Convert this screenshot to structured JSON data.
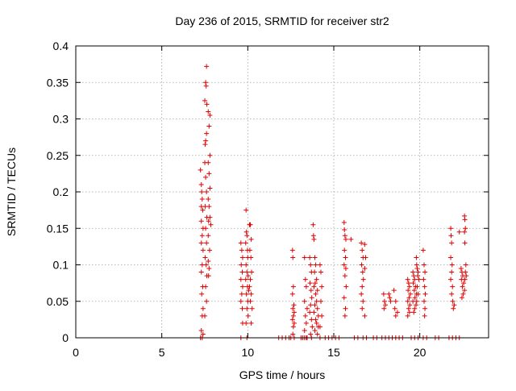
{
  "chart_data": {
    "type": "scatter",
    "title": "Day 236 of 2015, SRMTID for receiver str2",
    "xlabel": "GPS time / hours",
    "ylabel": "SRMTID / TECUs",
    "xlim": [
      0,
      24
    ],
    "ylim": [
      0,
      0.4
    ],
    "xticks": [
      "0",
      "5",
      "10",
      "15",
      "20"
    ],
    "yticks": [
      "0",
      "0.05",
      "0.1",
      "0.15",
      "0.2",
      "0.25",
      "0.3",
      "0.35",
      "0.4"
    ],
    "grid": true,
    "marker": "+",
    "marker_color": "#e00000",
    "series": [
      {
        "name": "SRMTID",
        "points": [
          [
            7.25,
            0.23
          ],
          [
            7.3,
            0.21
          ],
          [
            7.32,
            0.2
          ],
          [
            7.35,
            0.19
          ],
          [
            7.3,
            0.18
          ],
          [
            7.38,
            0.175
          ],
          [
            7.3,
            0.16
          ],
          [
            7.4,
            0.15
          ],
          [
            7.35,
            0.14
          ],
          [
            7.3,
            0.13
          ],
          [
            7.4,
            0.12
          ],
          [
            7.35,
            0.1
          ],
          [
            7.3,
            0.09
          ],
          [
            7.38,
            0.07
          ],
          [
            7.32,
            0.06
          ],
          [
            7.4,
            0.04
          ],
          [
            7.35,
            0.03
          ],
          [
            7.3,
            0.01
          ],
          [
            7.4,
            0.005
          ],
          [
            7.25,
            0.0
          ],
          [
            7.35,
            0.0
          ],
          [
            7.5,
            0.24
          ],
          [
            7.55,
            0.22
          ],
          [
            7.6,
            0.2
          ],
          [
            7.52,
            0.18
          ],
          [
            7.62,
            0.165
          ],
          [
            7.55,
            0.15
          ],
          [
            7.6,
            0.13
          ],
          [
            7.52,
            0.11
          ],
          [
            7.58,
            0.1
          ],
          [
            7.62,
            0.085
          ],
          [
            7.55,
            0.07
          ],
          [
            7.6,
            0.05
          ],
          [
            7.5,
            0.03
          ],
          [
            7.6,
            0.372
          ],
          [
            7.55,
            0.35
          ],
          [
            7.58,
            0.345
          ],
          [
            7.5,
            0.325
          ],
          [
            7.62,
            0.32
          ],
          [
            7.7,
            0.31
          ],
          [
            7.8,
            0.305
          ],
          [
            7.75,
            0.29
          ],
          [
            7.6,
            0.28
          ],
          [
            7.55,
            0.27
          ],
          [
            7.52,
            0.265
          ],
          [
            7.8,
            0.25
          ],
          [
            7.7,
            0.24
          ],
          [
            7.75,
            0.225
          ],
          [
            7.8,
            0.205
          ],
          [
            7.7,
            0.19
          ],
          [
            7.75,
            0.18
          ],
          [
            7.8,
            0.165
          ],
          [
            7.72,
            0.16
          ],
          [
            7.85,
            0.155
          ],
          [
            7.7,
            0.14
          ],
          [
            7.78,
            0.12
          ],
          [
            7.7,
            0.105
          ],
          [
            7.75,
            0.095
          ],
          [
            7.72,
            0.085
          ],
          [
            9.6,
            0.13
          ],
          [
            9.65,
            0.12
          ],
          [
            9.7,
            0.11
          ],
          [
            9.62,
            0.1
          ],
          [
            9.68,
            0.09
          ],
          [
            9.6,
            0.08
          ],
          [
            9.7,
            0.07
          ],
          [
            9.65,
            0.06
          ],
          [
            9.6,
            0.05
          ],
          [
            9.68,
            0.04
          ],
          [
            9.7,
            0.02
          ],
          [
            9.6,
            0.0
          ],
          [
            9.9,
            0.175
          ],
          [
            9.92,
            0.145
          ],
          [
            9.95,
            0.14
          ],
          [
            9.88,
            0.13
          ],
          [
            9.98,
            0.12
          ],
          [
            10.0,
            0.11
          ],
          [
            9.9,
            0.1
          ],
          [
            9.95,
            0.09
          ],
          [
            10.02,
            0.085
          ],
          [
            9.88,
            0.08
          ],
          [
            9.98,
            0.07
          ],
          [
            10.05,
            0.065
          ],
          [
            9.92,
            0.06
          ],
          [
            10.0,
            0.05
          ],
          [
            9.95,
            0.04
          ],
          [
            10.02,
            0.03
          ],
          [
            9.9,
            0.02
          ],
          [
            9.95,
            0.0
          ],
          [
            10.1,
            0.155
          ],
          [
            10.15,
            0.155
          ],
          [
            10.2,
            0.135
          ],
          [
            10.12,
            0.12
          ],
          [
            10.18,
            0.11
          ],
          [
            10.22,
            0.09
          ],
          [
            10.15,
            0.08
          ],
          [
            10.1,
            0.07
          ],
          [
            10.2,
            0.06
          ],
          [
            10.15,
            0.05
          ],
          [
            10.25,
            0.04
          ],
          [
            10.2,
            0.02
          ],
          [
            11.8,
            0.0
          ],
          [
            12.0,
            0.0
          ],
          [
            12.2,
            0.0
          ],
          [
            12.4,
            0.0
          ],
          [
            12.5,
            0.0
          ],
          [
            12.6,
            0.12
          ],
          [
            12.62,
            0.11
          ],
          [
            12.65,
            0.07
          ],
          [
            12.6,
            0.06
          ],
          [
            12.68,
            0.045
          ],
          [
            12.62,
            0.04
          ],
          [
            12.7,
            0.035
          ],
          [
            12.65,
            0.03
          ],
          [
            12.6,
            0.025
          ],
          [
            12.7,
            0.02
          ],
          [
            12.65,
            0.015
          ],
          [
            12.62,
            0.005
          ],
          [
            12.7,
            0.0
          ],
          [
            13.1,
            0.0
          ],
          [
            13.2,
            0.0
          ],
          [
            13.3,
            0.0
          ],
          [
            13.4,
            0.0
          ],
          [
            13.3,
            0.11
          ],
          [
            13.35,
            0.08
          ],
          [
            13.4,
            0.07
          ],
          [
            13.3,
            0.05
          ],
          [
            13.45,
            0.04
          ],
          [
            13.35,
            0.03
          ],
          [
            13.4,
            0.02
          ],
          [
            13.3,
            0.01
          ],
          [
            13.45,
            0.0
          ],
          [
            13.6,
            0.11
          ],
          [
            13.65,
            0.1
          ],
          [
            13.7,
            0.09
          ],
          [
            13.62,
            0.075
          ],
          [
            13.68,
            0.065
          ],
          [
            13.72,
            0.055
          ],
          [
            13.65,
            0.045
          ],
          [
            13.6,
            0.035
          ],
          [
            13.7,
            0.025
          ],
          [
            13.75,
            0.015
          ],
          [
            13.65,
            0.005
          ],
          [
            13.7,
            0.0
          ],
          [
            13.8,
            0.155
          ],
          [
            13.82,
            0.14
          ],
          [
            13.85,
            0.135
          ],
          [
            13.9,
            0.11
          ],
          [
            13.95,
            0.1
          ],
          [
            13.88,
            0.09
          ],
          [
            14.0,
            0.08
          ],
          [
            13.92,
            0.075
          ],
          [
            13.85,
            0.07
          ],
          [
            14.05,
            0.065
          ],
          [
            13.95,
            0.06
          ],
          [
            14.0,
            0.05
          ],
          [
            13.9,
            0.045
          ],
          [
            14.05,
            0.04
          ],
          [
            13.85,
            0.035
          ],
          [
            14.1,
            0.03
          ],
          [
            13.95,
            0.025
          ],
          [
            14.0,
            0.02
          ],
          [
            14.1,
            0.015
          ],
          [
            13.9,
            0.01
          ],
          [
            14.05,
            0.005
          ],
          [
            14.2,
            0.0
          ],
          [
            14.2,
            0.1
          ],
          [
            14.25,
            0.09
          ],
          [
            14.3,
            0.07
          ],
          [
            14.25,
            0.05
          ],
          [
            14.3,
            0.03
          ],
          [
            14.2,
            0.015
          ],
          [
            14.5,
            0.0
          ],
          [
            14.7,
            0.0
          ],
          [
            14.9,
            0.0
          ],
          [
            15.1,
            0.0
          ],
          [
            15.3,
            0.0
          ],
          [
            15.6,
            0.158
          ],
          [
            15.62,
            0.148
          ],
          [
            15.65,
            0.14
          ],
          [
            15.7,
            0.135
          ],
          [
            15.62,
            0.12
          ],
          [
            15.68,
            0.11
          ],
          [
            15.6,
            0.1
          ],
          [
            15.7,
            0.095
          ],
          [
            15.65,
            0.085
          ],
          [
            15.72,
            0.07
          ],
          [
            15.6,
            0.055
          ],
          [
            15.68,
            0.04
          ],
          [
            15.65,
            0.03
          ],
          [
            16.0,
            0.135
          ],
          [
            16.2,
            0.0
          ],
          [
            16.4,
            0.0
          ],
          [
            16.6,
            0.13
          ],
          [
            16.65,
            0.12
          ],
          [
            16.7,
            0.11
          ],
          [
            16.62,
            0.1
          ],
          [
            16.68,
            0.09
          ],
          [
            16.72,
            0.08
          ],
          [
            16.65,
            0.07
          ],
          [
            16.6,
            0.06
          ],
          [
            16.7,
            0.05
          ],
          [
            16.65,
            0.04
          ],
          [
            16.8,
            0.03
          ],
          [
            16.7,
            0.0
          ],
          [
            16.9,
            0.0
          ],
          [
            16.8,
            0.128
          ],
          [
            16.85,
            0.11
          ],
          [
            16.8,
            0.095
          ],
          [
            17.3,
            0.0
          ],
          [
            17.5,
            0.0
          ],
          [
            17.9,
            0.06
          ],
          [
            17.95,
            0.05
          ],
          [
            18.0,
            0.045
          ],
          [
            17.92,
            0.04
          ],
          [
            18.2,
            0.06
          ],
          [
            18.25,
            0.055
          ],
          [
            18.3,
            0.05
          ],
          [
            18.5,
            0.065
          ],
          [
            18.6,
            0.05
          ],
          [
            18.55,
            0.04
          ],
          [
            18.7,
            0.035
          ],
          [
            18.6,
            0.03
          ],
          [
            17.8,
            0.0
          ],
          [
            18.0,
            0.0
          ],
          [
            18.2,
            0.0
          ],
          [
            18.4,
            0.0
          ],
          [
            18.6,
            0.0
          ],
          [
            18.8,
            0.0
          ],
          [
            19.0,
            0.0
          ],
          [
            19.3,
            0.08
          ],
          [
            19.35,
            0.075
          ],
          [
            19.4,
            0.07
          ],
          [
            19.32,
            0.065
          ],
          [
            19.45,
            0.06
          ],
          [
            19.38,
            0.055
          ],
          [
            19.3,
            0.05
          ],
          [
            19.42,
            0.045
          ],
          [
            19.35,
            0.04
          ],
          [
            19.4,
            0.035
          ],
          [
            19.3,
            0.03
          ],
          [
            19.6,
            0.09
          ],
          [
            19.65,
            0.085
          ],
          [
            19.7,
            0.08
          ],
          [
            19.62,
            0.075
          ],
          [
            19.75,
            0.07
          ],
          [
            19.68,
            0.065
          ],
          [
            19.8,
            0.06
          ],
          [
            19.72,
            0.055
          ],
          [
            19.6,
            0.05
          ],
          [
            19.78,
            0.045
          ],
          [
            19.7,
            0.04
          ],
          [
            19.65,
            0.035
          ],
          [
            19.8,
            0.11
          ],
          [
            19.82,
            0.1
          ],
          [
            19.85,
            0.095
          ],
          [
            19.9,
            0.09
          ],
          [
            19.88,
            0.085
          ],
          [
            19.95,
            0.08
          ],
          [
            19.85,
            0.07
          ],
          [
            19.9,
            0.06
          ],
          [
            19.82,
            0.05
          ],
          [
            19.5,
            0.0
          ],
          [
            19.7,
            0.0
          ],
          [
            19.9,
            0.0
          ],
          [
            20.2,
            0.12
          ],
          [
            20.25,
            0.1
          ],
          [
            20.3,
            0.09
          ],
          [
            20.22,
            0.08
          ],
          [
            20.28,
            0.07
          ],
          [
            20.32,
            0.06
          ],
          [
            20.25,
            0.05
          ],
          [
            20.3,
            0.04
          ],
          [
            20.28,
            0.03
          ],
          [
            20.2,
            0.0
          ],
          [
            20.4,
            0.0
          ],
          [
            20.9,
            0.0
          ],
          [
            21.1,
            0.0
          ],
          [
            21.8,
            0.15
          ],
          [
            21.82,
            0.14
          ],
          [
            21.85,
            0.13
          ],
          [
            21.8,
            0.11
          ],
          [
            21.88,
            0.1
          ],
          [
            21.85,
            0.09
          ],
          [
            21.8,
            0.08
          ],
          [
            21.9,
            0.07
          ],
          [
            21.85,
            0.06
          ],
          [
            21.92,
            0.05
          ],
          [
            22.0,
            0.045
          ],
          [
            21.95,
            0.04
          ],
          [
            21.7,
            0.0
          ],
          [
            21.9,
            0.0
          ],
          [
            22.1,
            0.0
          ],
          [
            22.3,
            0.0
          ],
          [
            22.3,
            0.145
          ],
          [
            22.4,
            0.095
          ],
          [
            22.45,
            0.09
          ],
          [
            22.5,
            0.085
          ],
          [
            22.42,
            0.08
          ],
          [
            22.55,
            0.075
          ],
          [
            22.48,
            0.07
          ],
          [
            22.6,
            0.065
          ],
          [
            22.52,
            0.06
          ],
          [
            22.45,
            0.055
          ],
          [
            22.6,
            0.167
          ],
          [
            22.62,
            0.162
          ],
          [
            22.65,
            0.15
          ],
          [
            22.6,
            0.145
          ],
          [
            22.62,
            0.13
          ],
          [
            22.68,
            0.1
          ],
          [
            22.65,
            0.09
          ],
          [
            22.7,
            0.085
          ],
          [
            22.62,
            0.08
          ]
        ]
      }
    ]
  }
}
